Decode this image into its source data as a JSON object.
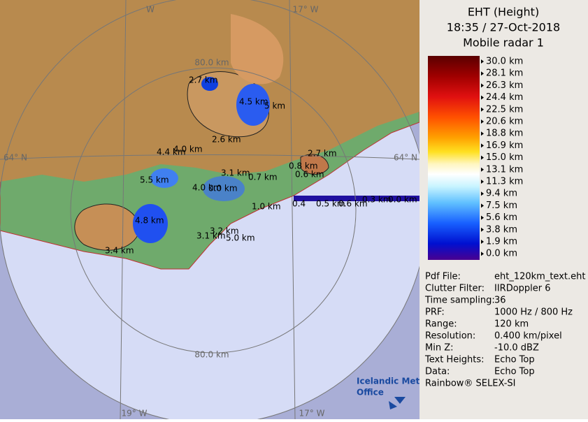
{
  "map": {
    "grid_labels": [
      "W",
      "17° W",
      "80.0 km",
      "64° N",
      "64° N",
      "80.0 km",
      "19° W",
      "17° W"
    ],
    "echo_labels": [
      "2.7 km",
      "4.5 km",
      "5 km",
      "2.6 km",
      "4.4 km",
      "4.0 km",
      "2.7 km",
      "0.8 km",
      "0.6 km",
      "5.5 km",
      "3.1 km",
      "0.7 km",
      "4.0 km",
      "0.0 km",
      "1.0 km",
      "0.4",
      "0.5 km",
      "0.6 km",
      "0.3 km",
      "0.0 km",
      "4.8 km",
      "3.2 km",
      "3.1 km",
      "5.0 km",
      "3.4 km"
    ],
    "logo": [
      "Icelandic Met",
      "Office"
    ]
  },
  "panel": {
    "title": [
      "EHT (Height)",
      "18:35 / 27-Oct-2018",
      "Mobile radar 1"
    ],
    "scale": [
      "30.0 km",
      "28.1 km",
      "26.3 km",
      "24.4 km",
      "22.5 km",
      "20.6 km",
      "18.8 km",
      "16.9 km",
      "15.0 km",
      "13.1 km",
      "11.3 km",
      "9.4 km",
      "7.5 km",
      "5.6 km",
      "3.8 km",
      "1.9 km",
      "0.0 km"
    ],
    "info": [
      [
        "Pdf File:",
        "eht_120km_text.eht"
      ],
      [
        "Clutter Filter:",
        "IIRDoppler 6"
      ],
      [
        "Time sampling:",
        "36"
      ],
      [
        "PRF:",
        "1000 Hz / 800 Hz"
      ],
      [
        "Range:",
        "120 km"
      ],
      [
        "Resolution:",
        "0.400 km/pixel"
      ],
      [
        "Min Z:",
        "-10.0 dBZ"
      ],
      [
        "Text Heights:",
        "Echo Top"
      ],
      [
        "Data:",
        "Echo Top"
      ]
    ],
    "footer": "Rainbow® SELEX-SI"
  }
}
